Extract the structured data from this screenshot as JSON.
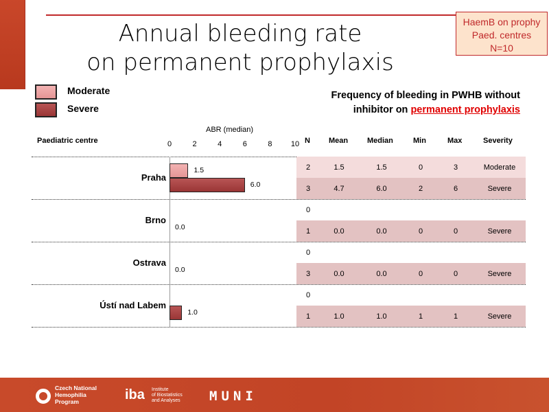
{
  "title": [
    "Annual bleeding rate",
    "on permanent prophylaxis"
  ],
  "badge": [
    "HaemB on prophy",
    "Paed. centres",
    "N=10"
  ],
  "legend": [
    {
      "label": "Moderate",
      "color": "#e8a0a0"
    },
    {
      "label": "Severe",
      "color": "#a84444"
    }
  ],
  "freq": {
    "line1": "Frequency of bleeding in PWHB without",
    "line2_prefix": "inhibitor on ",
    "line2_highlight": "permanent prophylaxis",
    "highlight_color": "#e00000"
  },
  "table_headers": {
    "centre": "Paediatric centre",
    "N": "N",
    "mean": "Mean",
    "median": "Median",
    "min": "Min",
    "max": "Max",
    "severity": "Severity"
  },
  "chart_data": {
    "type": "bar",
    "orientation": "horizontal",
    "xlabel": "ABR (median)",
    "xlim": [
      0,
      10
    ],
    "ticks": [
      "0",
      "2",
      "4",
      "6",
      "8",
      "10"
    ],
    "categories": [
      "Praha",
      "Brno",
      "Ostrava",
      "Ústí nad Labem"
    ],
    "series": [
      {
        "name": "Moderate",
        "values": [
          1.5,
          null,
          null,
          null
        ],
        "labels": [
          "1.5",
          "",
          "",
          ""
        ]
      },
      {
        "name": "Severe",
        "values": [
          6.0,
          0.0,
          0.0,
          1.0
        ],
        "labels": [
          "6.0",
          "0.0",
          "0.0",
          "1.0"
        ]
      }
    ]
  },
  "table": [
    {
      "centre": "Praha",
      "rows": [
        {
          "N": "2",
          "mean": "1.5",
          "median": "1.5",
          "min": "0",
          "max": "3",
          "severity": "Moderate"
        },
        {
          "N": "3",
          "mean": "4.7",
          "median": "6.0",
          "min": "2",
          "max": "6",
          "severity": "Severe"
        }
      ]
    },
    {
      "centre": "Brno",
      "rows": [
        {
          "N": "0",
          "mean": "",
          "median": "",
          "min": "",
          "max": "",
          "severity": ""
        },
        {
          "N": "1",
          "mean": "0.0",
          "median": "0.0",
          "min": "0",
          "max": "0",
          "severity": "Severe"
        }
      ]
    },
    {
      "centre": "Ostrava",
      "rows": [
        {
          "N": "0",
          "mean": "",
          "median": "",
          "min": "",
          "max": "",
          "severity": ""
        },
        {
          "N": "3",
          "mean": "0.0",
          "median": "0.0",
          "min": "0",
          "max": "0",
          "severity": "Severe"
        }
      ]
    },
    {
      "centre": "Ústí nad Labem",
      "rows": [
        {
          "N": "0",
          "mean": "",
          "median": "",
          "min": "",
          "max": "",
          "severity": ""
        },
        {
          "N": "1",
          "mean": "1.0",
          "median": "1.0",
          "min": "1",
          "max": "1",
          "severity": "Severe"
        }
      ]
    }
  ],
  "footer": {
    "logo1": [
      "Czech National",
      "Hemophilia",
      "Program"
    ],
    "logo2_mark": "iba",
    "logo2": [
      "Institute",
      "of Biostatistics",
      "and Analyses"
    ],
    "logo3": "MUNI"
  }
}
